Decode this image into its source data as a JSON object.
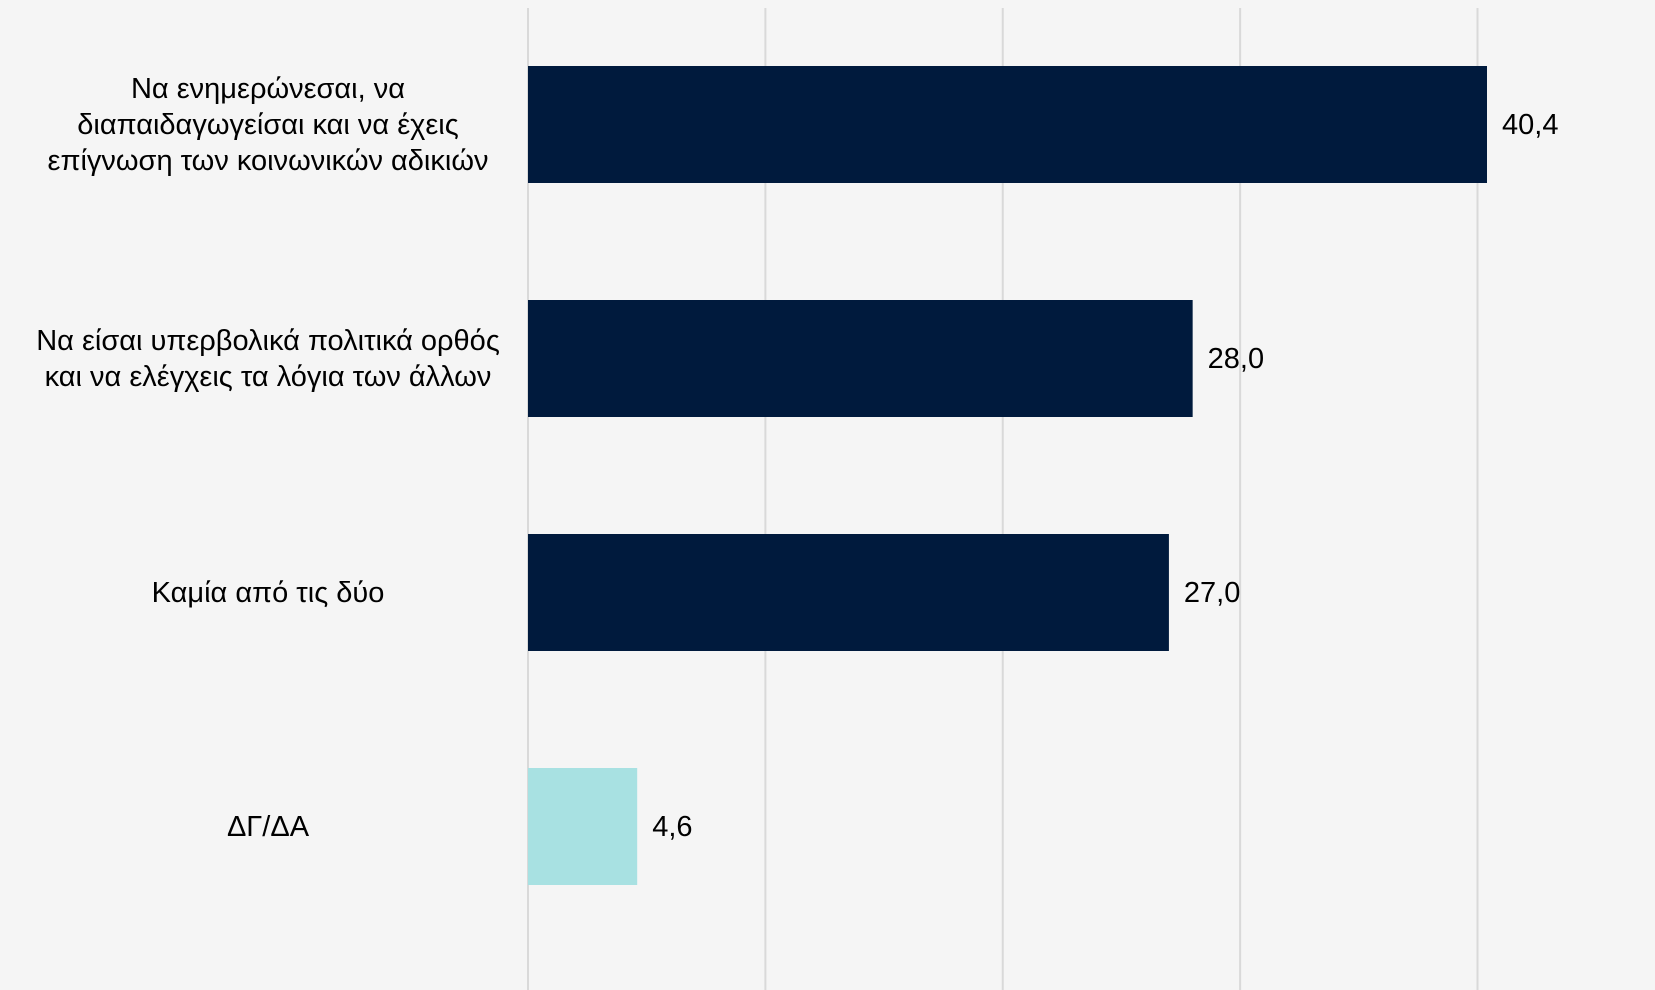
{
  "chart_data": {
    "type": "bar",
    "orientation": "horizontal",
    "categories": [
      [
        "Να ενημερώνεσαι, να",
        "διαπαιδαγωγείσαι και να έχεις",
        "επίγνωση των κοινωνικών αδικιών"
      ],
      [
        "Να είσαι υπερβολικά πολιτικά ορθός",
        "και να ελέγχεις τα λόγια των άλλων"
      ],
      [
        "Καμία από τις δύο"
      ],
      [
        "ΔΓ/ΔΑ"
      ]
    ],
    "values": [
      40.4,
      28.0,
      27.0,
      4.6
    ],
    "value_labels": [
      "40,4",
      "28,0",
      "27,0",
      "4,6"
    ],
    "bar_colors": [
      "#001a3d",
      "#001a3d",
      "#001a3d",
      "#a8e1e2"
    ],
    "xlim": [
      0,
      45
    ],
    "grid_step": 10,
    "grid": true,
    "title": "",
    "xlabel": "",
    "ylabel": ""
  },
  "colors": {
    "background": "#f5f5f5",
    "gridline": "#d9d9d9",
    "text": "#000000"
  }
}
